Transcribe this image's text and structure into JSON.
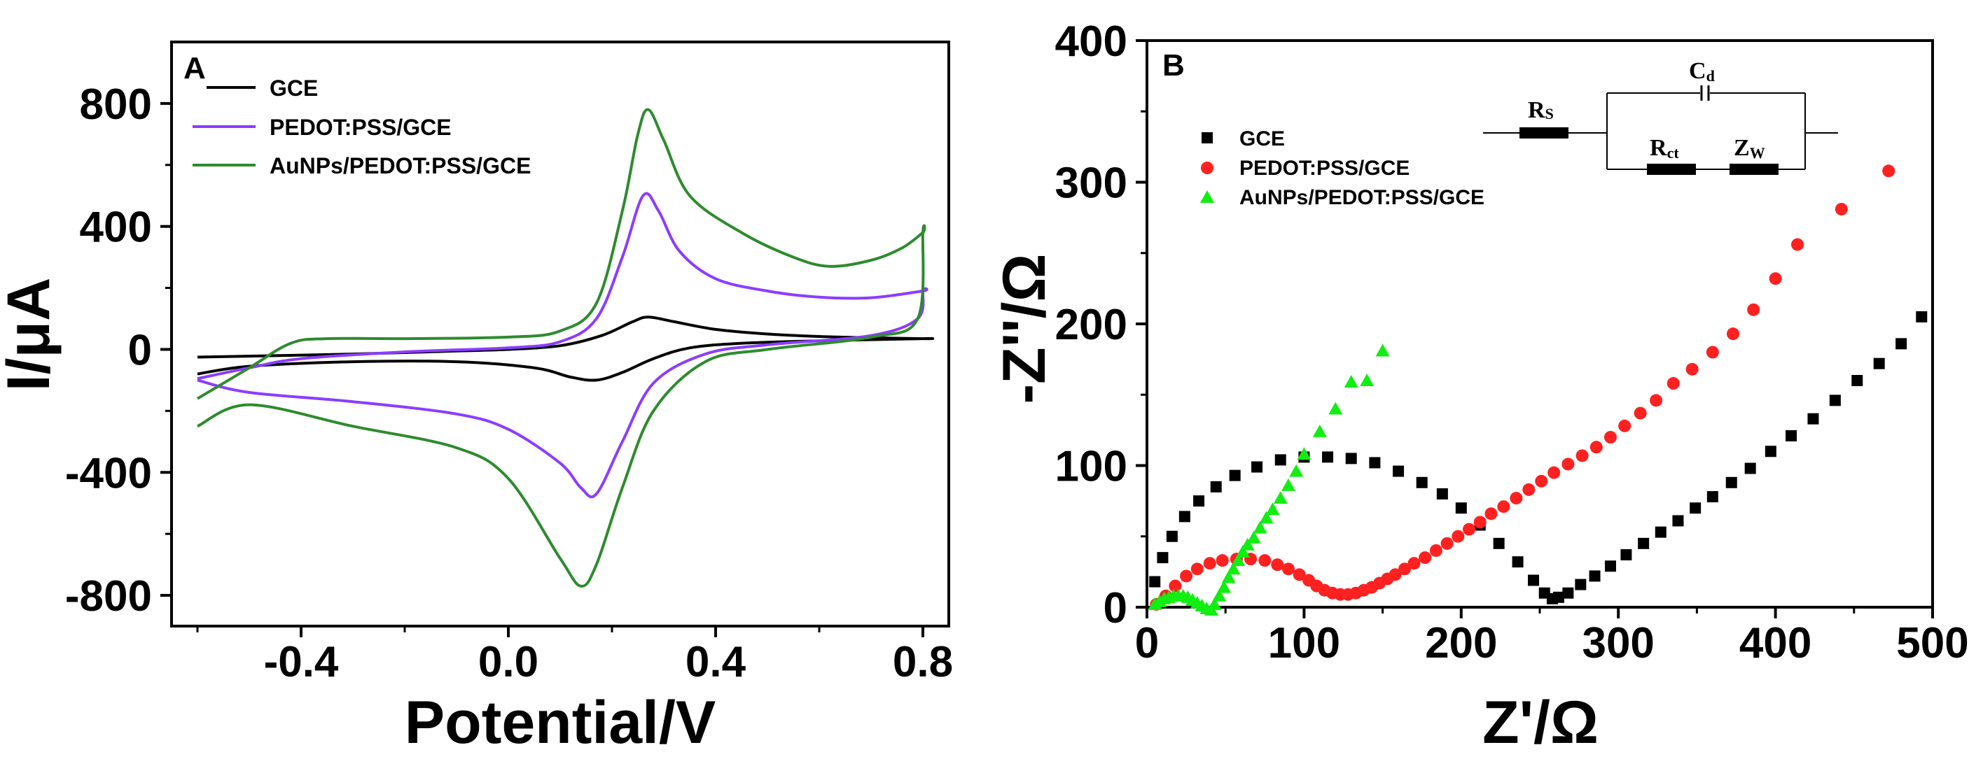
{
  "chart_data": [
    {
      "type": "line",
      "panel_label": "A",
      "xlabel": "Potential/V",
      "ylabel": "I/μA",
      "xlim": [
        -0.65,
        0.85
      ],
      "ylim": [
        -900,
        1000
      ],
      "xticks": [
        -0.4,
        0.0,
        0.4,
        0.8
      ],
      "xtick_labels": [
        "-0.4",
        "0.0",
        "0.4",
        "0.8"
      ],
      "yticks": [
        -800,
        -400,
        0,
        400,
        800
      ],
      "ytick_labels": [
        "-800",
        "-400",
        "0",
        "400",
        "800"
      ],
      "legend_position": "top-left",
      "series": [
        {
          "name": "GCE",
          "color": "#000000",
          "forward": [
            [
              -0.6,
              -25
            ],
            [
              -0.5,
              -22
            ],
            [
              -0.3,
              -15
            ],
            [
              -0.1,
              -5
            ],
            [
              0.0,
              0
            ],
            [
              0.1,
              12
            ],
            [
              0.18,
              45
            ],
            [
              0.24,
              90
            ],
            [
              0.27,
              105
            ],
            [
              0.32,
              90
            ],
            [
              0.4,
              65
            ],
            [
              0.5,
              50
            ],
            [
              0.6,
              42
            ],
            [
              0.7,
              38
            ],
            [
              0.8,
              35
            ]
          ],
          "reverse": [
            [
              0.8,
              35
            ],
            [
              0.6,
              28
            ],
            [
              0.45,
              20
            ],
            [
              0.35,
              5
            ],
            [
              0.28,
              -30
            ],
            [
              0.22,
              -75
            ],
            [
              0.17,
              -100
            ],
            [
              0.12,
              -90
            ],
            [
              0.05,
              -60
            ],
            [
              -0.1,
              -40
            ],
            [
              -0.3,
              -40
            ],
            [
              -0.5,
              -55
            ],
            [
              -0.6,
              -80
            ]
          ]
        },
        {
          "name": "PEDOT:PSS/GCE",
          "color": "#8B3DFF",
          "forward": [
            [
              -0.6,
              -95
            ],
            [
              -0.5,
              -60
            ],
            [
              -0.4,
              -30
            ],
            [
              -0.2,
              -8
            ],
            [
              0.0,
              5
            ],
            [
              0.1,
              25
            ],
            [
              0.17,
              100
            ],
            [
              0.22,
              300
            ],
            [
              0.26,
              500
            ],
            [
              0.29,
              450
            ],
            [
              0.33,
              320
            ],
            [
              0.4,
              230
            ],
            [
              0.5,
              190
            ],
            [
              0.6,
              170
            ],
            [
              0.7,
              168
            ],
            [
              0.8,
              190
            ]
          ],
          "reverse": [
            [
              0.8,
              190
            ],
            [
              0.79,
              100
            ],
            [
              0.7,
              45
            ],
            [
              0.5,
              15
            ],
            [
              0.38,
              -15
            ],
            [
              0.28,
              -110
            ],
            [
              0.22,
              -300
            ],
            [
              0.17,
              -470
            ],
            [
              0.14,
              -450
            ],
            [
              0.1,
              -370
            ],
            [
              0.0,
              -260
            ],
            [
              -0.1,
              -210
            ],
            [
              -0.3,
              -170
            ],
            [
              -0.5,
              -140
            ],
            [
              -0.6,
              -100
            ]
          ]
        },
        {
          "name": "AuNPs/PEDOT:PSS/GCE",
          "color": "#2E8B2E",
          "forward": [
            [
              -0.6,
              -160
            ],
            [
              -0.5,
              -60
            ],
            [
              -0.42,
              20
            ],
            [
              -0.35,
              35
            ],
            [
              -0.2,
              35
            ],
            [
              0.0,
              40
            ],
            [
              0.1,
              60
            ],
            [
              0.17,
              150
            ],
            [
              0.22,
              450
            ],
            [
              0.25,
              700
            ],
            [
              0.27,
              780
            ],
            [
              0.3,
              680
            ],
            [
              0.35,
              500
            ],
            [
              0.45,
              380
            ],
            [
              0.55,
              300
            ],
            [
              0.62,
              270
            ],
            [
              0.7,
              290
            ],
            [
              0.76,
              330
            ],
            [
              0.8,
              380
            ]
          ],
          "reverse": [
            [
              0.8,
              380
            ],
            [
              0.79,
              100
            ],
            [
              0.7,
              40
            ],
            [
              0.5,
              0
            ],
            [
              0.38,
              -40
            ],
            [
              0.28,
              -200
            ],
            [
              0.22,
              -450
            ],
            [
              0.17,
              -700
            ],
            [
              0.14,
              -770
            ],
            [
              0.1,
              -680
            ],
            [
              0.0,
              -420
            ],
            [
              -0.1,
              -320
            ],
            [
              -0.3,
              -250
            ],
            [
              -0.5,
              -180
            ],
            [
              -0.6,
              -250
            ]
          ]
        }
      ]
    },
    {
      "type": "scatter",
      "panel_label": "B",
      "xlabel": "Z'/Ω",
      "ylabel": "-Z''/Ω",
      "xlim": [
        0,
        500
      ],
      "ylim": [
        0,
        400
      ],
      "xticks": [
        0,
        100,
        200,
        300,
        400,
        500
      ],
      "xtick_labels": [
        "0",
        "100",
        "200",
        "300",
        "400",
        "500"
      ],
      "yticks": [
        0,
        100,
        200,
        300,
        400
      ],
      "ytick_labels": [
        "0",
        "100",
        "200",
        "300",
        "400"
      ],
      "legend_position": "top-left",
      "series": [
        {
          "name": "GCE",
          "color": "#000000",
          "marker": "square",
          "points": [
            [
              5,
              18
            ],
            [
              10,
              35
            ],
            [
              16,
              50
            ],
            [
              24,
              64
            ],
            [
              33,
              75
            ],
            [
              44,
              85
            ],
            [
              56,
              93
            ],
            [
              70,
              99
            ],
            [
              85,
              104
            ],
            [
              100,
              106
            ],
            [
              115,
              106
            ],
            [
              130,
              105
            ],
            [
              145,
              102
            ],
            [
              160,
              96
            ],
            [
              175,
              88
            ],
            [
              188,
              80
            ],
            [
              200,
              70
            ],
            [
              212,
              58
            ],
            [
              224,
              45
            ],
            [
              236,
              32
            ],
            [
              246,
              19
            ],
            [
              253,
              10
            ],
            [
              258,
              6
            ],
            [
              262,
              7
            ],
            [
              268,
              10
            ],
            [
              276,
              16
            ],
            [
              285,
              22
            ],
            [
              295,
              29
            ],
            [
              305,
              37
            ],
            [
              316,
              45
            ],
            [
              327,
              53
            ],
            [
              338,
              61
            ],
            [
              349,
              70
            ],
            [
              360,
              78
            ],
            [
              372,
              88
            ],
            [
              384,
              98
            ],
            [
              397,
              110
            ],
            [
              410,
              121
            ],
            [
              424,
              133
            ],
            [
              438,
              146
            ],
            [
              452,
              160
            ],
            [
              466,
              172
            ],
            [
              480,
              186
            ],
            [
              493,
              205
            ]
          ]
        },
        {
          "name": "PEDOT:PSS/GCE",
          "color": "#FF2020",
          "marker": "circle",
          "points": [
            [
              6,
              2
            ],
            [
              12,
              8
            ],
            [
              18,
              15
            ],
            [
              25,
              22
            ],
            [
              32,
              27
            ],
            [
              40,
              31
            ],
            [
              48,
              33
            ],
            [
              57,
              34
            ],
            [
              66,
              34
            ],
            [
              75,
              33
            ],
            [
              83,
              30
            ],
            [
              90,
              27
            ],
            [
              97,
              23
            ],
            [
              103,
              19
            ],
            [
              108,
              15
            ],
            [
              113,
              12
            ],
            [
              118,
              10
            ],
            [
              123,
              9
            ],
            [
              128,
              9
            ],
            [
              133,
              10
            ],
            [
              138,
              12
            ],
            [
              143,
              14
            ],
            [
              148,
              17
            ],
            [
              153,
              20
            ],
            [
              158,
              23
            ],
            [
              164,
              27
            ],
            [
              170,
              31
            ],
            [
              177,
              35
            ],
            [
              184,
              40
            ],
            [
              191,
              45
            ],
            [
              198,
              50
            ],
            [
              205,
              55
            ],
            [
              212,
              60
            ],
            [
              219,
              66
            ],
            [
              227,
              71
            ],
            [
              235,
              77
            ],
            [
              243,
              83
            ],
            [
              251,
              89
            ],
            [
              259,
              95
            ],
            [
              268,
              101
            ],
            [
              277,
              107
            ],
            [
              286,
              113
            ],
            [
              295,
              120
            ],
            [
              304,
              128
            ],
            [
              314,
              137
            ],
            [
              324,
              146
            ],
            [
              335,
              158
            ],
            [
              347,
              168
            ],
            [
              360,
              180
            ],
            [
              373,
              193
            ],
            [
              386,
              210
            ],
            [
              400,
              232
            ],
            [
              414,
              256
            ],
            [
              442,
              281
            ],
            [
              472,
              308
            ]
          ]
        },
        {
          "name": "AuNPs/PEDOT:PSS/GCE",
          "color": "#11EE11",
          "marker": "triangle",
          "points": [
            [
              5,
              2
            ],
            [
              8,
              4
            ],
            [
              11,
              6
            ],
            [
              14,
              7
            ],
            [
              17,
              8
            ],
            [
              20,
              8
            ],
            [
              23,
              8
            ],
            [
              26,
              7
            ],
            [
              29,
              5
            ],
            [
              32,
              3
            ],
            [
              35,
              1
            ],
            [
              38,
              -1
            ],
            [
              41,
              -2
            ],
            [
              43,
              2
            ],
            [
              46,
              8
            ],
            [
              49,
              14
            ],
            [
              52,
              21
            ],
            [
              55,
              27
            ],
            [
              58,
              33
            ],
            [
              61,
              39
            ],
            [
              64,
              44
            ],
            [
              68,
              49
            ],
            [
              72,
              56
            ],
            [
              76,
              63
            ],
            [
              80,
              69
            ],
            [
              85,
              77
            ],
            [
              90,
              86
            ],
            [
              95,
              96
            ],
            [
              100,
              108
            ],
            [
              110,
              124
            ],
            [
              120,
              140
            ],
            [
              130,
              159
            ],
            [
              140,
              160
            ],
            [
              150,
              181
            ]
          ]
        }
      ],
      "inset_circuit": {
        "elements": [
          "Rs",
          "Cd",
          "Rct",
          "Zw"
        ]
      }
    }
  ],
  "circuit_labels": {
    "rs": "R",
    "rs_sub": "S",
    "cd": "C",
    "cd_sub": "d",
    "rct": "R",
    "rct_sub": "ct",
    "zw": "Z",
    "zw_sub": "W"
  }
}
